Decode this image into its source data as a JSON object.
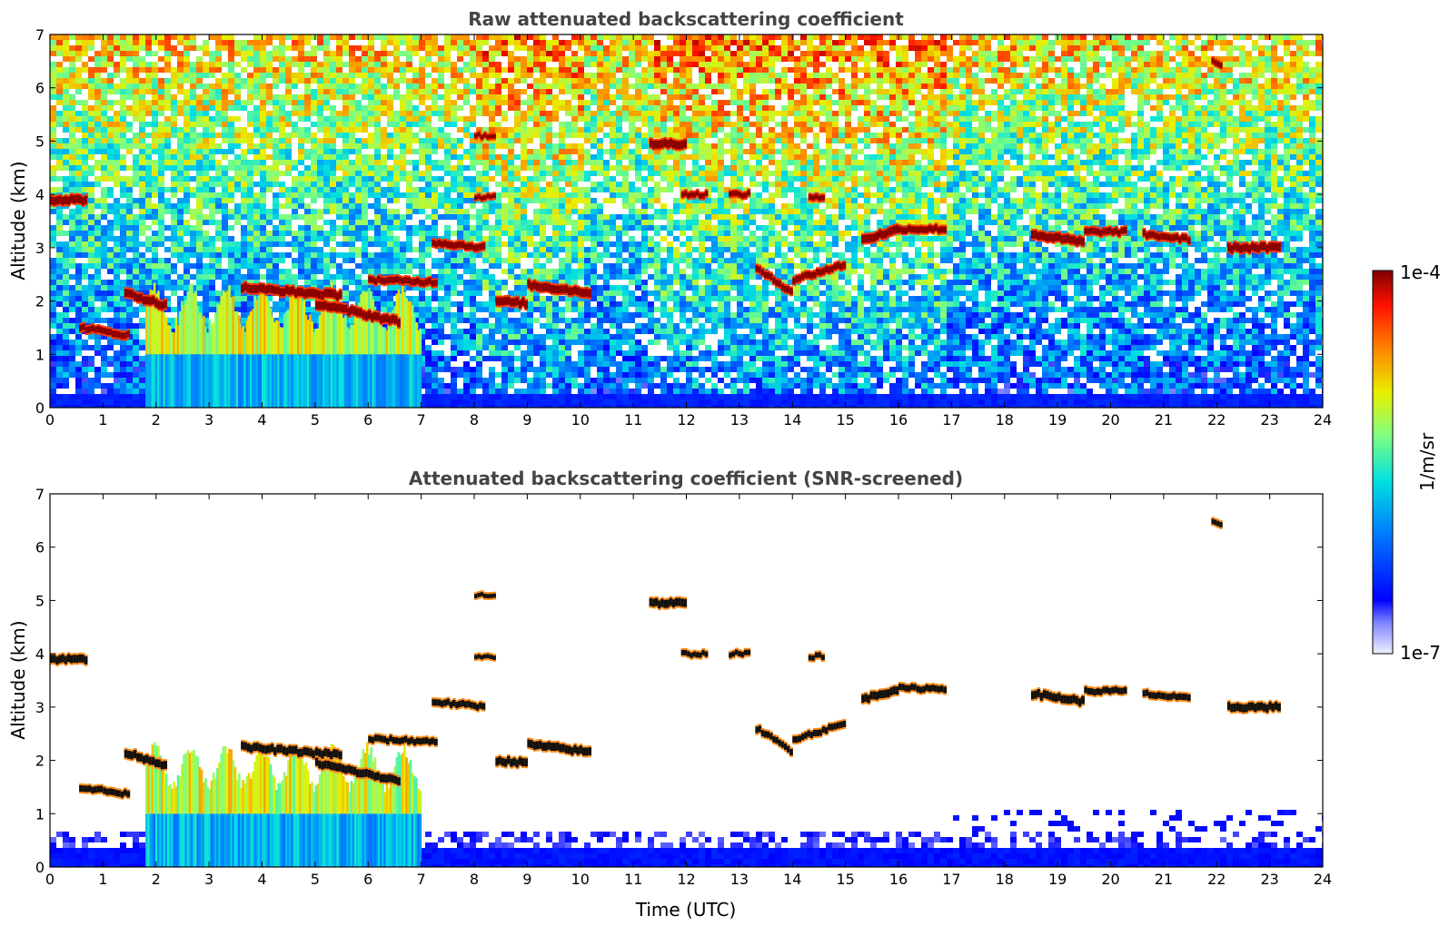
{
  "chart_data": [
    {
      "type": "heatmap",
      "title": "Raw attenuated backscattering coefficient",
      "xlabel": "",
      "ylabel": "Altitude (km)",
      "xlim": [
        0,
        24
      ],
      "ylim": [
        0,
        7
      ],
      "x_ticks": [
        0,
        1,
        2,
        3,
        4,
        5,
        6,
        7,
        8,
        9,
        10,
        11,
        12,
        13,
        14,
        15,
        16,
        17,
        18,
        19,
        20,
        21,
        22,
        23,
        24
      ],
      "y_ticks": [
        0,
        1,
        2,
        3,
        4,
        5,
        6,
        7
      ],
      "screened": false,
      "layers": [
        {
          "x": [
            0.0,
            0.7
          ],
          "y": [
            3.9,
            3.9
          ],
          "thickness": 0.15
        },
        {
          "x": [
            0.55,
            1.5
          ],
          "y": [
            1.5,
            1.35
          ],
          "thickness": 0.12
        },
        {
          "x": [
            1.4,
            2.2
          ],
          "y": [
            2.15,
            1.9
          ],
          "thickness": 0.15
        },
        {
          "x": [
            3.6,
            5.5
          ],
          "y": [
            2.25,
            2.1
          ],
          "thickness": 0.15
        },
        {
          "x": [
            5.0,
            6.6
          ],
          "y": [
            1.95,
            1.6
          ],
          "thickness": 0.15
        },
        {
          "x": [
            6.0,
            7.3
          ],
          "y": [
            2.4,
            2.35
          ],
          "thickness": 0.12
        },
        {
          "x": [
            7.2,
            8.2
          ],
          "y": [
            3.1,
            3.0
          ],
          "thickness": 0.12
        },
        {
          "x": [
            8.4,
            9.0
          ],
          "y": [
            2.0,
            1.95
          ],
          "thickness": 0.15
        },
        {
          "x": [
            9.0,
            10.2
          ],
          "y": [
            2.3,
            2.15
          ],
          "thickness": 0.15
        },
        {
          "x": [
            8.0,
            8.4
          ],
          "y": [
            5.1,
            5.1
          ],
          "thickness": 0.08
        },
        {
          "x": [
            8.0,
            8.4
          ],
          "y": [
            3.95,
            3.95
          ],
          "thickness": 0.08
        },
        {
          "x": [
            11.3,
            12.0
          ],
          "y": [
            4.95,
            4.95
          ],
          "thickness": 0.15
        },
        {
          "x": [
            11.9,
            12.4
          ],
          "y": [
            4.0,
            4.0
          ],
          "thickness": 0.1
        },
        {
          "x": [
            12.8,
            13.2
          ],
          "y": [
            4.0,
            4.0
          ],
          "thickness": 0.1
        },
        {
          "x": [
            14.3,
            14.6
          ],
          "y": [
            3.95,
            3.95
          ],
          "thickness": 0.1
        },
        {
          "x": [
            13.3,
            14.0
          ],
          "y": [
            2.6,
            2.15
          ],
          "thickness": 0.12
        },
        {
          "x": [
            14.0,
            15.0
          ],
          "y": [
            2.4,
            2.7
          ],
          "thickness": 0.12
        },
        {
          "x": [
            15.3,
            16.0
          ],
          "y": [
            3.15,
            3.35
          ],
          "thickness": 0.15
        },
        {
          "x": [
            16.0,
            16.9
          ],
          "y": [
            3.35,
            3.35
          ],
          "thickness": 0.12
        },
        {
          "x": [
            18.5,
            19.5
          ],
          "y": [
            3.25,
            3.1
          ],
          "thickness": 0.15
        },
        {
          "x": [
            19.5,
            20.3
          ],
          "y": [
            3.3,
            3.3
          ],
          "thickness": 0.12
        },
        {
          "x": [
            20.6,
            21.5
          ],
          "y": [
            3.25,
            3.15
          ],
          "thickness": 0.12
        },
        {
          "x": [
            22.2,
            23.2
          ],
          "y": [
            3.0,
            3.0
          ],
          "thickness": 0.15
        },
        {
          "x": [
            21.9,
            22.1
          ],
          "y": [
            6.5,
            6.4
          ],
          "thickness": 0.1
        }
      ],
      "low_cloud": {
        "x": [
          1.8,
          7.0
        ],
        "top_km": 1.0
      }
    },
    {
      "type": "heatmap",
      "title": "Attenuated backscattering coefficient (SNR-screened)",
      "xlabel": "Time (UTC)",
      "ylabel": "Altitude (km)",
      "xlim": [
        0,
        24
      ],
      "ylim": [
        0,
        7
      ],
      "x_ticks": [
        0,
        1,
        2,
        3,
        4,
        5,
        6,
        7,
        8,
        9,
        10,
        11,
        12,
        13,
        14,
        15,
        16,
        17,
        18,
        19,
        20,
        21,
        22,
        23,
        24
      ],
      "y_ticks": [
        0,
        1,
        2,
        3,
        4,
        5,
        6,
        7
      ],
      "screened": true,
      "layers": "same as raw",
      "low_cloud": {
        "x": [
          1.8,
          7.0
        ],
        "top_km": 1.0
      }
    }
  ],
  "colorbar": {
    "label": "1/m/sr",
    "max_label": "1e-4",
    "min_label": "1e-7",
    "colormap": "jet",
    "scale": "log"
  }
}
